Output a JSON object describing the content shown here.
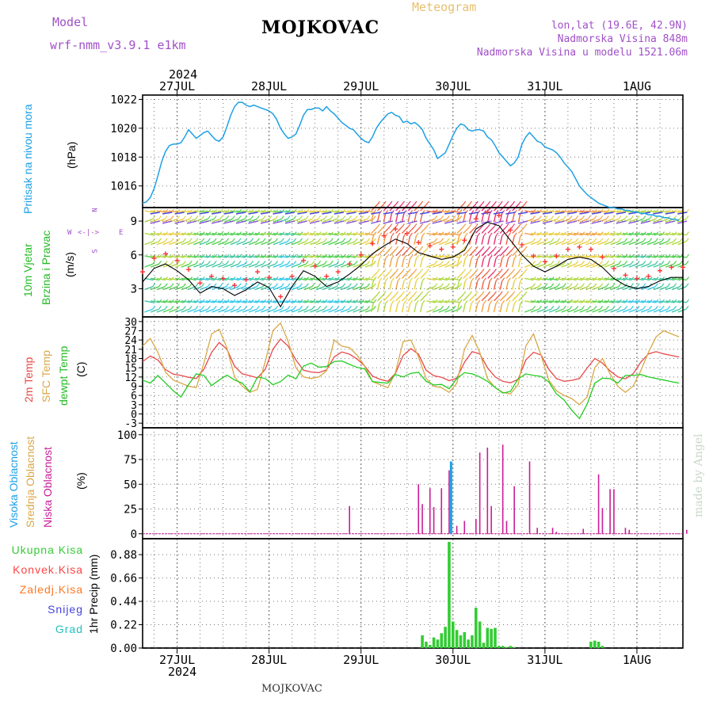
{
  "header": {
    "model_label": "Model",
    "model_name": "wrf-nmm_v3.9.1  e1km",
    "station": "MOJKOVAC",
    "meteogram_label": "Meteogram",
    "lonlat": "lon,lat (19.6E, 42.9N)",
    "elevation": "Nadmorska Visina 848m",
    "model_elevation": "Nadmorska Visina u modelu 1521.06m",
    "year": "2024",
    "footer_station": "MOJKOVAC",
    "watermark": "made by Angel"
  },
  "colors": {
    "pressure": "#1ea0e6",
    "temp2m": "#e84848",
    "sfc_temp": "#d8a848",
    "dewpt": "#22cc22",
    "wind_speed": "#000000",
    "wind_gust_marker": "#ff3333",
    "high_cloud": "#1ea0e6",
    "mid_cloud": "#d8a848",
    "low_cloud": "#c81e96",
    "total_precip": "#33cc33",
    "conv_precip": "#ff4444",
    "frozen_precip": "#ff7722",
    "snow": "#4444dd",
    "hail": "#22c0c0",
    "model_text": "#a050c8",
    "meteogram_text": "#e6c070",
    "grid": "#888888"
  },
  "time_axis": {
    "ticks": [
      "27JUL",
      "28JUL",
      "29JUL",
      "30JUL",
      "31JUL",
      "1AUG"
    ],
    "year": "2024",
    "start_hour_offset": -9,
    "total_hours": 141
  },
  "chart_data": [
    {
      "type": "line",
      "panel": "pressure",
      "ylabel_rot": "Pritisak na nivou mora",
      "unit": "(hPa)",
      "yticks": [
        1016,
        1018,
        1020,
        1022
      ],
      "ylim": [
        1014.5,
        1022.3
      ],
      "x_hours": [
        -9,
        -8,
        -7,
        -6,
        -5,
        -4,
        -3,
        -2,
        -1,
        0,
        1,
        2,
        3,
        4,
        5,
        6,
        7,
        8,
        9,
        10,
        11,
        12,
        13,
        14,
        15,
        16,
        17,
        18,
        19,
        20,
        21,
        22,
        23,
        24,
        25,
        26,
        27,
        28,
        29,
        30,
        31,
        32,
        33,
        34,
        35,
        36,
        37,
        38,
        39,
        40,
        41,
        42,
        43,
        44,
        45,
        46,
        47,
        48,
        49,
        50,
        51,
        52,
        53,
        54,
        55,
        56,
        57,
        58,
        59,
        60,
        61,
        62,
        63,
        64,
        65,
        66,
        67,
        68,
        69,
        70,
        71,
        72,
        73,
        74,
        75,
        76,
        77,
        78,
        79,
        80,
        81,
        82,
        83,
        84,
        85,
        86,
        87,
        88,
        89,
        90,
        91,
        92,
        93,
        94,
        95,
        96,
        97,
        98,
        99,
        100,
        101,
        102,
        103,
        104,
        105,
        106,
        107,
        108,
        109,
        110,
        111,
        112,
        113,
        114,
        115,
        116,
        117,
        118,
        119,
        120,
        121,
        122,
        123,
        124,
        125,
        126,
        127,
        128,
        129,
        130,
        131
      ],
      "values": [
        1014.8,
        1014.9,
        1015.2,
        1015.8,
        1016.7,
        1017.7,
        1018.4,
        1018.8,
        1018.9,
        1018.9,
        1019.0,
        1019.4,
        1019.9,
        1019.6,
        1019.3,
        1019.5,
        1019.7,
        1019.8,
        1019.5,
        1019.2,
        1019.1,
        1019.4,
        1020.1,
        1020.9,
        1021.5,
        1021.8,
        1021.8,
        1021.6,
        1021.5,
        1021.6,
        1021.5,
        1021.4,
        1021.3,
        1021.2,
        1021.0,
        1020.6,
        1020.0,
        1019.6,
        1019.3,
        1019.4,
        1019.6,
        1020.2,
        1020.9,
        1021.3,
        1021.3,
        1021.4,
        1021.4,
        1021.2,
        1021.5,
        1021.2,
        1021.0,
        1020.7,
        1020.4,
        1020.2,
        1020.0,
        1019.9,
        1019.6,
        1019.3,
        1019.1,
        1019.0,
        1019.4,
        1020.0,
        1020.4,
        1020.7,
        1021.0,
        1021.1,
        1020.9,
        1020.8,
        1020.4,
        1020.5,
        1020.3,
        1020.4,
        1020.2,
        1019.9,
        1019.3,
        1018.9,
        1018.5,
        1017.9,
        1018.1,
        1018.3,
        1018.9,
        1019.5,
        1020.0,
        1020.3,
        1020.2,
        1019.9,
        1019.8,
        1019.9,
        1019.9,
        1019.8,
        1019.4,
        1019.2,
        1018.8,
        1018.3,
        1018.0,
        1017.7,
        1017.4,
        1017.6,
        1018.0,
        1018.9,
        1019.4,
        1019.7,
        1019.4,
        1019.1,
        1019.0,
        1018.7,
        1018.6,
        1018.5,
        1018.3,
        1018.0,
        1017.6,
        1017.3,
        1017.0,
        1016.5,
        1016.0,
        1015.7,
        1015.4,
        1015.2,
        1015.0,
        1014.8,
        1014.7,
        1014.6,
        1014.5,
        1014.5,
        1014.4,
        1014.4,
        1014.3,
        1014.3,
        1014.2,
        1014.2,
        1014.1,
        1014.1,
        1014.0,
        1014.0,
        1013.9,
        1013.9,
        1013.8,
        1013.8,
        1013.7,
        1013.7,
        1013.6
      ]
    },
    {
      "type": "line",
      "panel": "wind",
      "ylabel_rot1": "10m  Vjetar",
      "ylabel_rot2": "Brzina i Pravac",
      "unit": "(m/s)",
      "compass": [
        "N",
        "S",
        "W",
        "E"
      ],
      "yticks": [
        3,
        6,
        9
      ],
      "ylim": [
        0.5,
        10.2
      ],
      "x_hours": [
        -9,
        -6,
        -3,
        0,
        3,
        6,
        9,
        12,
        15,
        18,
        21,
        24,
        27,
        30,
        33,
        36,
        39,
        42,
        45,
        48,
        51,
        54,
        57,
        60,
        63,
        66,
        69,
        72,
        75,
        78,
        81,
        84,
        87,
        90,
        93,
        96,
        99,
        102,
        105,
        108,
        111,
        114,
        117,
        120,
        123,
        126,
        129,
        132
      ],
      "values": [
        3.6,
        4.8,
        5.2,
        4.6,
        3.8,
        2.6,
        3.2,
        3.0,
        2.4,
        2.9,
        3.6,
        3.1,
        1.4,
        3.2,
        4.6,
        4.1,
        3.2,
        3.6,
        4.3,
        5.1,
        6.1,
        6.8,
        7.4,
        7.0,
        6.2,
        5.9,
        5.6,
        5.8,
        6.4,
        8.3,
        8.9,
        8.6,
        7.3,
        6.0,
        5.0,
        4.5,
        5.0,
        5.6,
        5.8,
        5.6,
        4.9,
        3.9,
        3.3,
        3.0,
        3.2,
        3.7,
        4.0,
        4.0
      ]
    },
    {
      "type": "line",
      "panel": "temperature",
      "ylabel_rot1": "2m  Temp",
      "ylabel_rot2": "SFC  Temp",
      "ylabel_rot3": "dewpt  Temp",
      "unit": "(C)",
      "yticks": [
        -3,
        0,
        3,
        6,
        9,
        12,
        15,
        18,
        21,
        24,
        27,
        30
      ],
      "ylim": [
        -4.5,
        31.5
      ],
      "x_hours": [
        -9,
        -7,
        -5,
        -3,
        -1,
        1,
        3,
        5,
        7,
        9,
        11,
        13,
        15,
        17,
        19,
        21,
        23,
        25,
        27,
        29,
        31,
        33,
        35,
        37,
        39,
        41,
        43,
        45,
        47,
        49,
        51,
        53,
        55,
        57,
        59,
        61,
        63,
        65,
        67,
        69,
        71,
        73,
        75,
        77,
        79,
        81,
        83,
        85,
        87,
        89,
        91,
        93,
        95,
        97,
        99,
        101,
        103,
        105,
        107,
        109,
        111,
        113,
        115,
        117,
        119,
        121,
        123,
        125,
        127,
        129,
        131
      ],
      "series": [
        {
          "key": "t2m",
          "values": [
            17.0,
            18.8,
            17.5,
            14.4,
            12.9,
            12.5,
            11.9,
            11.5,
            14.5,
            20.0,
            23.2,
            21.0,
            15.5,
            13.0,
            12.4,
            11.7,
            14.5,
            21.0,
            24.3,
            22.0,
            17.5,
            14.2,
            13.6,
            13.4,
            14.3,
            18.5,
            20.1,
            19.4,
            17.8,
            15.5,
            12.3,
            11.2,
            10.6,
            13.2,
            19.0,
            21.2,
            19.4,
            14.2,
            12.4,
            11.9,
            10.8,
            11.6,
            16.8,
            20.2,
            19.5,
            15.0,
            12.0,
            10.6,
            10.1,
            11.2,
            17.5,
            20.0,
            19.1,
            14.5,
            11.5,
            10.6,
            10.9,
            11.5,
            14.9,
            18.0,
            16.5,
            14.0,
            12.0,
            11.4,
            13.0,
            16.8,
            19.5,
            20.2,
            19.5,
            19.0,
            18.5
          ]
        },
        {
          "key": "sfc",
          "values": [
            22.0,
            24.5,
            20.0,
            13.5,
            11.0,
            10.0,
            9.0,
            8.5,
            16.5,
            26.0,
            27.5,
            21.5,
            12.0,
            9.0,
            7.0,
            8.0,
            17.0,
            27.0,
            29.5,
            23.5,
            15.0,
            12.0,
            11.5,
            12.0,
            14.0,
            24.0,
            22.0,
            21.5,
            19.0,
            15.5,
            10.5,
            9.5,
            8.5,
            13.5,
            23.5,
            24.0,
            18.5,
            11.5,
            9.0,
            8.5,
            7.0,
            10.0,
            21.0,
            25.5,
            20.0,
            11.5,
            8.5,
            7.0,
            6.5,
            9.5,
            22.0,
            26.0,
            19.0,
            11.0,
            7.5,
            6.0,
            5.0,
            3.0,
            5.5,
            15.0,
            18.0,
            13.0,
            9.0,
            7.0,
            9.0,
            14.0,
            20.0,
            25.0,
            27.0,
            26.0,
            25.0
          ]
        },
        {
          "key": "dew",
          "values": [
            11.0,
            10.0,
            12.5,
            10.0,
            7.5,
            5.5,
            9.5,
            13.0,
            12.5,
            9.2,
            11.0,
            12.6,
            11.0,
            10.0,
            7.2,
            12.0,
            11.5,
            9.5,
            10.5,
            12.6,
            11.4,
            15.5,
            16.5,
            15.2,
            15.4,
            17.0,
            17.2,
            16.1,
            15.1,
            14.6,
            10.5,
            10.2,
            10.0,
            12.8,
            12.0,
            13.2,
            13.5,
            10.6,
            9.4,
            9.6,
            8.2,
            11.5,
            13.4,
            13.0,
            12.0,
            10.6,
            8.6,
            6.8,
            7.3,
            11.4,
            13.0,
            12.5,
            12.2,
            10.4,
            6.5,
            4.5,
            1.2,
            -1.5,
            3.2,
            10.0,
            11.6,
            11.5,
            10.0,
            12.5,
            12.5,
            12.8,
            12.0,
            11.5,
            11.0,
            10.5,
            10.0
          ]
        }
      ]
    },
    {
      "type": "bar",
      "panel": "clouds",
      "ylabel_rot1": "Visoka Oblacnost",
      "ylabel_rot2": "Srednja Oblacnost",
      "ylabel_rot3": "Niska  Oblacnost",
      "unit": "(%)",
      "yticks": [
        0,
        25,
        50,
        75,
        100
      ],
      "ylim": [
        -5,
        107
      ],
      "low_x_hours": [
        45,
        63,
        64,
        66,
        67,
        69,
        71,
        73,
        75,
        78,
        79,
        81,
        82,
        85,
        86,
        88,
        92,
        94,
        98,
        99,
        106,
        110,
        111,
        113,
        114,
        117,
        118,
        133
      ],
      "low_values": [
        28,
        50,
        30,
        46,
        27,
        46,
        64,
        8,
        13,
        15,
        82,
        87,
        28,
        90,
        13,
        48,
        73,
        6,
        6,
        2,
        5,
        60,
        26,
        45,
        45,
        6,
        4,
        4
      ],
      "high_x_hours": [
        71.5
      ],
      "high_values": [
        73
      ]
    },
    {
      "type": "bar",
      "panel": "precip",
      "legend": [
        "Ukupna  Kisa",
        "Konvek.Kisa",
        "Zaledj.Kisa",
        "Snijeg",
        "Grad"
      ],
      "ylabel": "1hr Precip (mm)",
      "yticks": [
        0,
        0.22,
        0.44,
        0.66,
        0.88
      ],
      "ylim": [
        0,
        1.03
      ],
      "x_hours": [
        64,
        65,
        66,
        67,
        68,
        69,
        70,
        71,
        72,
        73,
        74,
        75,
        76,
        77,
        78,
        79,
        80,
        81,
        82,
        83,
        84,
        85,
        86,
        87,
        88,
        108,
        109,
        110,
        111
      ],
      "values": [
        0.12,
        0.06,
        0.03,
        0.1,
        0.08,
        0.14,
        0.2,
        1.0,
        0.25,
        0.17,
        0.12,
        0.15,
        0.08,
        0.12,
        0.38,
        0.25,
        0.05,
        0.19,
        0.18,
        0.19,
        0.02,
        0.02,
        0.01,
        0.02,
        0.01,
        0.06,
        0.07,
        0.06,
        0.02
      ]
    }
  ]
}
